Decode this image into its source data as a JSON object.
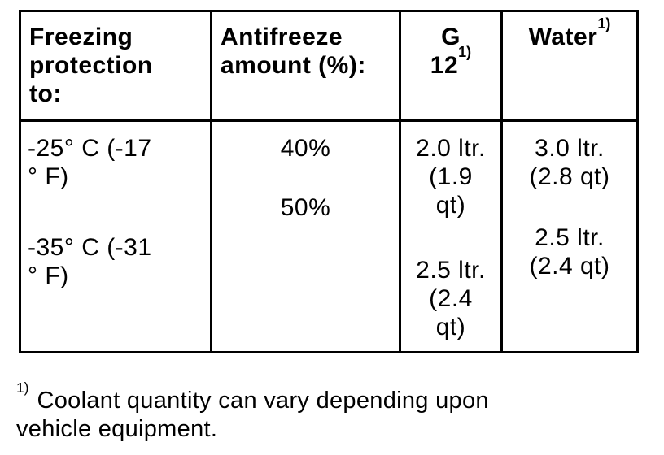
{
  "colors": {
    "text": "#000000",
    "background": "#ffffff",
    "border": "#000000"
  },
  "table": {
    "headers": [
      {
        "lines": [
          "Freezing",
          "protection",
          "to:"
        ]
      },
      {
        "lines": [
          "Antifreeze",
          "amount (%):"
        ]
      },
      {
        "line1": "G",
        "line2": "12",
        "sup": "1)"
      },
      {
        "text": "Water",
        "sup": "1)"
      }
    ],
    "body": {
      "freezing_protection": [
        {
          "lines": [
            "-25° C (-17",
            "° F)"
          ]
        },
        {
          "lines": [
            "-35° C (-31",
            "° F)"
          ]
        }
      ],
      "antifreeze_amount": [
        "40%",
        "50%"
      ],
      "g12": [
        {
          "lines": [
            "2.0 ltr.",
            "(1.9",
            "qt)"
          ]
        },
        {
          "lines": [
            "2.5 ltr.",
            "(2.4",
            "qt)"
          ]
        }
      ],
      "water": [
        {
          "lines": [
            "3.0 ltr.",
            "(2.8 qt)"
          ]
        },
        {
          "lines": [
            "2.5 ltr.",
            "(2.4 qt)"
          ]
        }
      ]
    }
  },
  "footnote": {
    "marker": "1)",
    "lines": [
      "Coolant quantity can vary depending upon",
      "vehicle equipment."
    ]
  }
}
